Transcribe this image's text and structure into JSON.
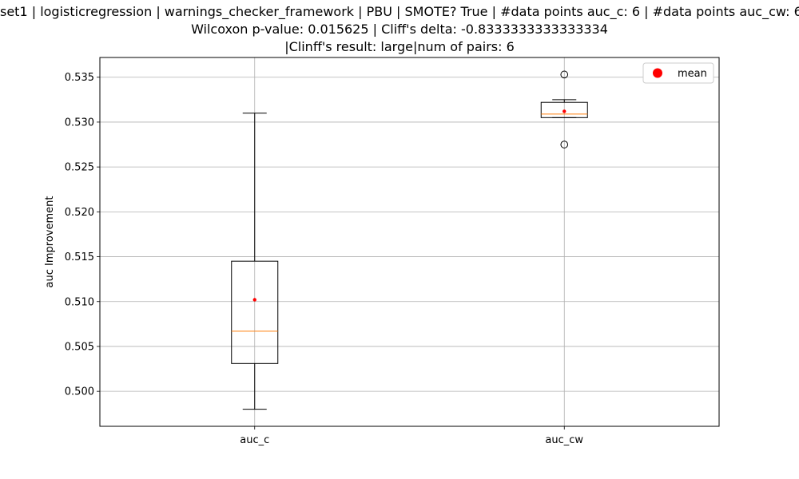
{
  "chart_data": {
    "type": "box",
    "title_lines": [
      "set1 | logisticregression | warnings_checker_framework | PBU | SMOTE? True | #data points auc_c: 6 | #data points auc_cw: 6",
      "Wilcoxon p-value: 0.015625 | Cliff's delta: -0.8333333333333334",
      "|Clinff's result: large|num of pairs: 6"
    ],
    "xlabel": "",
    "ylabel": "auc Improvement",
    "categories": [
      "auc_c",
      "auc_cw"
    ],
    "ylim": [
      0.4961,
      0.5372
    ],
    "yticks": [
      0.5,
      0.505,
      0.51,
      0.515,
      0.52,
      0.525,
      0.53,
      0.535
    ],
    "ytick_labels": [
      "0.500",
      "0.505",
      "0.510",
      "0.515",
      "0.520",
      "0.525",
      "0.530",
      "0.535"
    ],
    "grid": true,
    "boxes": [
      {
        "name": "auc_c",
        "whisker_low": 0.498,
        "q1": 0.5031,
        "median": 0.5067,
        "q3": 0.5145,
        "whisker_high": 0.531,
        "mean": 0.5102,
        "outliers": []
      },
      {
        "name": "auc_cw",
        "whisker_low": 0.5305,
        "q1": 0.5305,
        "median": 0.5309,
        "q3": 0.5322,
        "whisker_high": 0.5325,
        "mean": 0.5312,
        "outliers": [
          0.5353,
          0.5275
        ]
      }
    ],
    "legend": {
      "label": "mean",
      "position": "top-right",
      "marker_color": "#ff0000"
    },
    "colors": {
      "median": "#ff7f0e",
      "mean": "#ff0000",
      "box": "#000000",
      "grid": "#b0b0b0"
    }
  }
}
